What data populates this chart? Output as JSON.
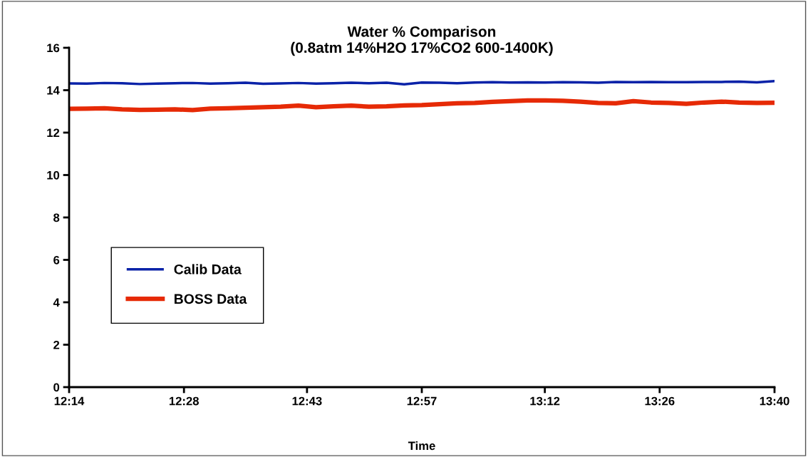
{
  "chart_data": {
    "type": "line",
    "title": "Water % Comparison\n(0.8atm 14%H2O 17%CO2 600-1400K)",
    "xlabel": "Time",
    "x": [
      12.2333,
      12.2692,
      12.305,
      12.3408,
      12.3767,
      12.4125,
      12.4483,
      12.4842,
      12.52,
      12.5558,
      12.5917,
      12.6275,
      12.6633,
      12.6992,
      12.735,
      12.7708,
      12.8067,
      12.8425,
      12.8783,
      12.9142,
      12.95,
      12.9858,
      13.0217,
      13.0575,
      13.0933,
      13.1292,
      13.165,
      13.2008,
      13.2367,
      13.2725,
      13.3083,
      13.3442,
      13.38,
      13.4158,
      13.4517,
      13.4875,
      13.5233,
      13.5592,
      13.595,
      13.6308,
      13.6667
    ],
    "series": [
      {
        "name": "Calib Data",
        "color": "#0a22a8",
        "values": [
          14.32,
          14.31,
          14.34,
          14.33,
          14.29,
          14.31,
          14.33,
          14.34,
          14.31,
          14.33,
          14.35,
          14.3,
          14.32,
          14.34,
          14.31,
          14.33,
          14.35,
          14.33,
          14.35,
          14.28,
          14.36,
          14.35,
          14.33,
          14.36,
          14.38,
          14.36,
          14.37,
          14.36,
          14.38,
          14.37,
          14.35,
          14.39,
          14.38,
          14.39,
          14.38,
          14.38,
          14.39,
          14.39,
          14.4,
          14.37,
          14.43
        ]
      },
      {
        "name": "BOSS Data",
        "color": "#e62a06",
        "values": [
          13.12,
          13.13,
          13.15,
          13.1,
          13.07,
          13.08,
          13.1,
          13.06,
          13.13,
          13.15,
          13.17,
          13.2,
          13.22,
          13.27,
          13.2,
          13.24,
          13.27,
          13.22,
          13.24,
          13.28,
          13.3,
          13.34,
          13.38,
          13.4,
          13.45,
          13.48,
          13.52,
          13.52,
          13.5,
          13.46,
          13.4,
          13.38,
          13.48,
          13.42,
          13.4,
          13.36,
          13.42,
          13.46,
          13.42,
          13.4,
          13.41
        ]
      }
    ],
    "ylim": [
      0,
      16
    ],
    "yticks": [
      0,
      2,
      4,
      6,
      8,
      10,
      12,
      14,
      16
    ],
    "xlim": [
      12.2333,
      13.6667
    ],
    "xticks": [
      {
        "value": 12.2333,
        "label": "12:14"
      },
      {
        "value": 12.4667,
        "label": "12:28"
      },
      {
        "value": 12.7167,
        "label": "12:43"
      },
      {
        "value": 12.95,
        "label": "12:57"
      },
      {
        "value": 13.2,
        "label": "13:12"
      },
      {
        "value": 13.4333,
        "label": "13:26"
      },
      {
        "value": 13.6667,
        "label": "13:40"
      }
    ],
    "grid": false,
    "legend": "center left",
    "line_style": "solid",
    "marker": "none"
  }
}
